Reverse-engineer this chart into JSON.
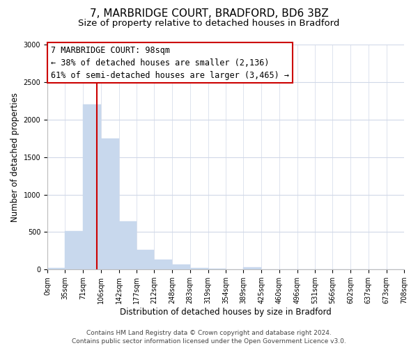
{
  "title": "7, MARBRIDGE COURT, BRADFORD, BD6 3BZ",
  "subtitle": "Size of property relative to detached houses in Bradford",
  "xlabel": "Distribution of detached houses by size in Bradford",
  "ylabel": "Number of detached properties",
  "bar_edges": [
    0,
    35,
    71,
    106,
    142,
    177,
    212,
    248,
    283,
    319,
    354,
    389,
    425,
    460,
    496,
    531,
    566,
    602,
    637,
    673,
    708
  ],
  "bar_heights": [
    25,
    510,
    2200,
    1750,
    640,
    260,
    130,
    70,
    25,
    10,
    5,
    30,
    5,
    0,
    0,
    0,
    0,
    0,
    0,
    0
  ],
  "bar_color": "#c8d8ed",
  "bar_edgecolor": "#c8d8ed",
  "vline_x": 98,
  "vline_color": "#cc0000",
  "ylim": [
    0,
    3000
  ],
  "yticks": [
    0,
    500,
    1000,
    1500,
    2000,
    2500,
    3000
  ],
  "xtick_labels": [
    "0sqm",
    "35sqm",
    "71sqm",
    "106sqm",
    "142sqm",
    "177sqm",
    "212sqm",
    "248sqm",
    "283sqm",
    "319sqm",
    "354sqm",
    "389sqm",
    "425sqm",
    "460sqm",
    "496sqm",
    "531sqm",
    "566sqm",
    "602sqm",
    "637sqm",
    "673sqm",
    "708sqm"
  ],
  "annotation_line1": "7 MARBRIDGE COURT: 98sqm",
  "annotation_line2": "← 38% of detached houses are smaller (2,136)",
  "annotation_line3": "61% of semi-detached houses are larger (3,465) →",
  "footer_line1": "Contains HM Land Registry data © Crown copyright and database right 2024.",
  "footer_line2": "Contains public sector information licensed under the Open Government Licence v3.0.",
  "bg_color": "#ffffff",
  "grid_color": "#d0d8e8",
  "title_fontsize": 11,
  "subtitle_fontsize": 9.5,
  "axis_label_fontsize": 8.5,
  "tick_fontsize": 7,
  "annotation_fontsize": 8.5,
  "footer_fontsize": 6.5
}
